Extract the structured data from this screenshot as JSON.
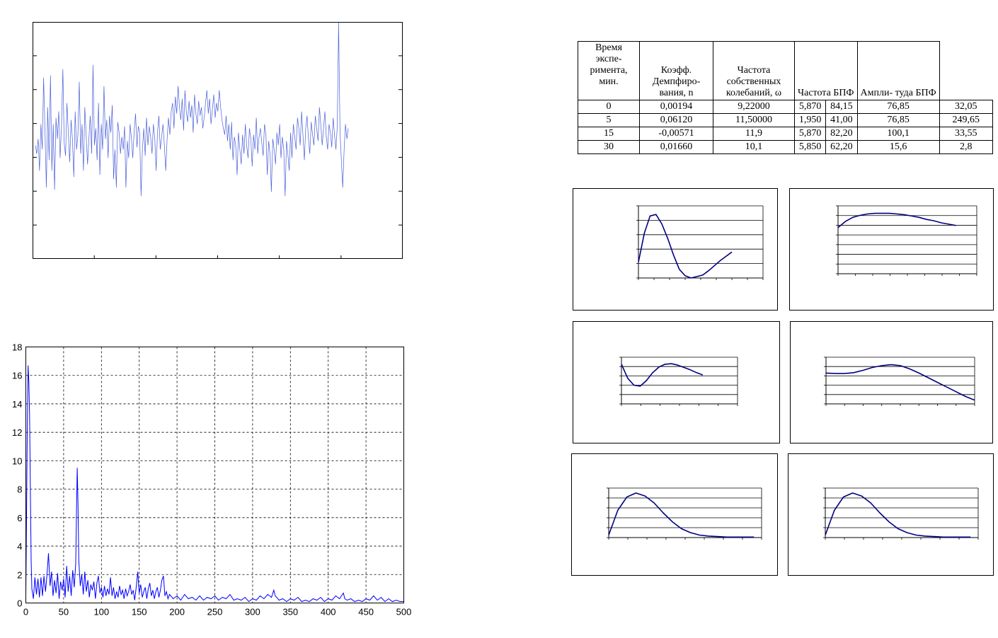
{
  "table": {
    "headers": [
      "Время экспе- римента, мин.",
      "Коэфф. Демпфиро- вания, n",
      "Частота собственных колебаний, ω",
      "Частота БПФ",
      "Ампли- туда БПФ"
    ],
    "rows": [
      [
        "0",
        "0,00194",
        "9,22000",
        "5,870",
        "84,15",
        "76,85",
        "32,05"
      ],
      [
        "5",
        "0,06120",
        "11,50000",
        "1,950",
        "41,00",
        "76,85",
        "249,65"
      ],
      [
        "15",
        "-0,00571",
        "11,9",
        "5,870",
        "82,20",
        "100,1",
        "33,55"
      ],
      [
        "30",
        "0,01660",
        "10,1",
        "5,850",
        "62,20",
        "15,6",
        "2,8"
      ]
    ]
  },
  "colors": {
    "signal": "#4a5fd8",
    "spectrum": "#0000ff",
    "curve": "#000080",
    "grid": "#000000"
  },
  "chart_data": [
    {
      "type": "line",
      "id": "signal",
      "title": "",
      "xlabel": "",
      "ylabel": "",
      "x_ticks_count": 6,
      "y_ticks_count": 6,
      "grid": false,
      "series": [
        {
          "values": [
            0.42,
            0.38,
            0.45,
            0.3,
            0.52,
            0.4,
            0.74,
            0.48,
            0.22,
            0.6,
            0.35,
            0.75,
            0.3,
            0.52,
            0.21,
            0.55,
            0.45,
            0.58,
            0.36,
            0.5,
            0.78,
            0.43,
            0.37,
            0.62,
            0.48,
            0.34,
            0.54,
            0.45,
            0.27,
            0.58,
            0.4,
            0.47,
            0.72,
            0.38,
            0.52,
            0.3,
            0.6,
            0.47,
            0.33,
            0.45,
            0.56,
            0.38,
            0.8,
            0.42,
            0.5,
            0.35,
            0.62,
            0.28,
            0.52,
            0.4,
            0.7,
            0.45,
            0.54,
            0.36,
            0.56,
            0.48,
            0.61,
            0.26,
            0.4,
            0.22,
            0.53,
            0.48,
            0.38,
            0.46,
            0.4,
            0.51,
            0.22,
            0.44,
            0.36,
            0.52,
            0.45,
            0.36,
            0.49,
            0.57,
            0.41,
            0.51,
            0.48,
            0.18,
            0.4,
            0.5,
            0.37,
            0.55,
            0.42,
            0.51,
            0.46,
            0.38,
            0.52,
            0.45,
            0.3,
            0.48,
            0.56,
            0.4,
            0.46,
            0.52,
            0.42,
            0.3,
            0.45,
            0.55,
            0.47,
            0.58,
            0.62,
            0.5,
            0.65,
            0.57,
            0.7,
            0.6,
            0.54,
            0.64,
            0.49,
            0.68,
            0.58,
            0.53,
            0.63,
            0.55,
            0.61,
            0.48,
            0.66,
            0.57,
            0.52,
            0.63,
            0.56,
            0.6,
            0.5,
            0.55,
            0.62,
            0.68,
            0.57,
            0.64,
            0.52,
            0.59,
            0.66,
            0.55,
            0.62,
            0.58,
            0.68,
            0.6,
            0.54,
            0.5,
            0.47,
            0.56,
            0.44,
            0.52,
            0.4,
            0.53,
            0.35,
            0.46,
            0.42,
            0.28,
            0.48,
            0.4,
            0.33,
            0.47,
            0.38,
            0.52,
            0.42,
            0.36,
            0.5,
            0.45,
            0.32,
            0.47,
            0.4,
            0.55,
            0.38,
            0.46,
            0.5,
            0.43,
            0.37,
            0.52,
            0.47,
            0.28,
            0.44,
            0.38,
            0.2,
            0.45,
            0.4,
            0.33,
            0.48,
            0.42,
            0.52,
            0.36,
            0.46,
            0.4,
            0.18,
            0.44,
            0.38,
            0.3,
            0.48,
            0.36,
            0.52,
            0.46,
            0.4,
            0.55,
            0.5,
            0.42,
            0.58,
            0.47,
            0.35,
            0.5,
            0.56,
            0.45,
            0.38,
            0.53,
            0.47,
            0.42,
            0.56,
            0.5,
            0.44,
            0.6,
            0.52,
            0.42,
            0.5,
            0.58,
            0.46,
            0.4,
            0.52,
            0.48,
            0.41,
            0.55,
            0.47,
            0.4,
            0.51,
            1.0,
            0.48,
            0.35,
            0.22,
            0.4,
            0.52,
            0.45,
            0.5
          ]
        }
      ]
    },
    {
      "type": "line",
      "id": "spectrum",
      "title": "",
      "xlabel": "",
      "ylabel": "",
      "x_ticks": [
        0,
        50,
        100,
        150,
        200,
        250,
        300,
        350,
        400,
        450,
        500
      ],
      "y_ticks": [
        0,
        2,
        4,
        6,
        8,
        10,
        12,
        14,
        16,
        18
      ],
      "xlim": [
        0,
        500
      ],
      "ylim": [
        0,
        18
      ],
      "grid": true,
      "series": [
        {
          "points": [
            [
              0,
              0.5
            ],
            [
              1,
              6.8
            ],
            [
              2,
              12.5
            ],
            [
              3,
              16.7
            ],
            [
              4,
              15.5
            ],
            [
              5,
              13.2
            ],
            [
              6,
              8.0
            ],
            [
              7,
              3.0
            ],
            [
              8,
              1.0
            ],
            [
              10,
              0.3
            ],
            [
              12,
              1.8
            ],
            [
              14,
              0.6
            ],
            [
              16,
              1.7
            ],
            [
              18,
              0.4
            ],
            [
              20,
              1.8
            ],
            [
              22,
              0.5
            ],
            [
              24,
              1.9
            ],
            [
              26,
              0.8
            ],
            [
              28,
              2.0
            ],
            [
              30,
              3.5
            ],
            [
              32,
              1.2
            ],
            [
              34,
              2.2
            ],
            [
              36,
              0.5
            ],
            [
              38,
              1.6
            ],
            [
              40,
              0.7
            ],
            [
              42,
              2.1
            ],
            [
              44,
              0.3
            ],
            [
              46,
              1.5
            ],
            [
              48,
              0.9
            ],
            [
              50,
              1.7
            ],
            [
              52,
              0.4
            ],
            [
              54,
              2.6
            ],
            [
              56,
              0.8
            ],
            [
              58,
              1.9
            ],
            [
              60,
              0.5
            ],
            [
              62,
              2.3
            ],
            [
              64,
              1.1
            ],
            [
              66,
              2.8
            ],
            [
              67,
              6.5
            ],
            [
              68,
              9.5
            ],
            [
              69,
              7.0
            ],
            [
              70,
              3.0
            ],
            [
              72,
              1.2
            ],
            [
              74,
              2.0
            ],
            [
              76,
              0.6
            ],
            [
              78,
              2.2
            ],
            [
              80,
              0.8
            ],
            [
              82,
              1.6
            ],
            [
              84,
              0.4
            ],
            [
              86,
              1.3
            ],
            [
              88,
              0.9
            ],
            [
              90,
              1.5
            ],
            [
              92,
              0.3
            ],
            [
              94,
              1.4
            ],
            [
              96,
              1.9
            ],
            [
              98,
              0.7
            ],
            [
              100,
              1.1
            ],
            [
              102,
              0.4
            ],
            [
              104,
              1.2
            ],
            [
              106,
              0.5
            ],
            [
              108,
              1.0
            ],
            [
              110,
              0.6
            ],
            [
              112,
              1.8
            ],
            [
              114,
              0.5
            ],
            [
              116,
              1.1
            ],
            [
              118,
              0.3
            ],
            [
              120,
              0.8
            ],
            [
              122,
              0.4
            ],
            [
              124,
              1.2
            ],
            [
              126,
              0.6
            ],
            [
              128,
              0.9
            ],
            [
              130,
              0.3
            ],
            [
              132,
              1.0
            ],
            [
              134,
              0.5
            ],
            [
              136,
              0.8
            ],
            [
              138,
              1.3
            ],
            [
              140,
              0.6
            ],
            [
              142,
              0.9
            ],
            [
              144,
              0.2
            ],
            [
              146,
              1.1
            ],
            [
              148,
              2.2
            ],
            [
              150,
              0.7
            ],
            [
              152,
              1.3
            ],
            [
              154,
              0.4
            ],
            [
              156,
              0.8
            ],
            [
              158,
              1.1
            ],
            [
              160,
              0.3
            ],
            [
              162,
              1.0
            ],
            [
              164,
              1.4
            ],
            [
              166,
              0.5
            ],
            [
              168,
              0.9
            ],
            [
              170,
              0.3
            ],
            [
              172,
              0.8
            ],
            [
              174,
              1.1
            ],
            [
              176,
              0.4
            ],
            [
              178,
              0.9
            ],
            [
              180,
              1.6
            ],
            [
              182,
              1.9
            ],
            [
              184,
              0.5
            ],
            [
              186,
              0.8
            ],
            [
              188,
              0.3
            ],
            [
              190,
              0.6
            ],
            [
              195,
              0.3
            ],
            [
              200,
              0.5
            ],
            [
              205,
              0.2
            ],
            [
              210,
              0.6
            ],
            [
              215,
              0.3
            ],
            [
              220,
              0.4
            ],
            [
              225,
              0.2
            ],
            [
              230,
              0.5
            ],
            [
              235,
              0.2
            ],
            [
              240,
              0.4
            ],
            [
              245,
              0.3
            ],
            [
              250,
              0.5
            ],
            [
              255,
              0.2
            ],
            [
              260,
              0.4
            ],
            [
              265,
              0.3
            ],
            [
              270,
              0.6
            ],
            [
              275,
              0.2
            ],
            [
              280,
              0.3
            ],
            [
              285,
              0.2
            ],
            [
              290,
              0.4
            ],
            [
              295,
              0.1
            ],
            [
              300,
              0.3
            ],
            [
              305,
              0.2
            ],
            [
              310,
              0.5
            ],
            [
              315,
              0.3
            ],
            [
              320,
              0.6
            ],
            [
              325,
              0.4
            ],
            [
              328,
              0.9
            ],
            [
              330,
              0.5
            ],
            [
              335,
              0.2
            ],
            [
              340,
              0.3
            ],
            [
              345,
              0.1
            ],
            [
              350,
              0.3
            ],
            [
              355,
              0.2
            ],
            [
              360,
              0.4
            ],
            [
              365,
              0.1
            ],
            [
              370,
              0.2
            ],
            [
              375,
              0.1
            ],
            [
              380,
              0.3
            ],
            [
              385,
              0.2
            ],
            [
              390,
              0.4
            ],
            [
              395,
              0.1
            ],
            [
              400,
              0.3
            ],
            [
              405,
              0.2
            ],
            [
              410,
              0.5
            ],
            [
              415,
              0.3
            ],
            [
              420,
              0.7
            ],
            [
              422,
              0.3
            ],
            [
              425,
              0.2
            ],
            [
              430,
              0.3
            ],
            [
              435,
              0.1
            ],
            [
              440,
              0.2
            ],
            [
              445,
              0.1
            ],
            [
              450,
              0.3
            ],
            [
              455,
              0.2
            ],
            [
              460,
              0.5
            ],
            [
              465,
              0.2
            ],
            [
              470,
              0.4
            ],
            [
              475,
              0.1
            ],
            [
              480,
              0.3
            ],
            [
              485,
              0.1
            ],
            [
              490,
              0.2
            ],
            [
              495,
              0.1
            ],
            [
              500,
              0.1
            ]
          ]
        }
      ]
    },
    {
      "type": "line",
      "id": "mini1",
      "title": "",
      "grid": true,
      "hlines": 5,
      "x_ticks_count": 8,
      "series": [
        {
          "values": [
            0.22,
            0.62,
            0.86,
            0.88,
            0.75,
            0.55,
            0.32,
            0.12,
            0.03,
            0.0,
            0.02,
            0.04,
            0.1,
            0.17,
            0.24,
            0.3,
            0.36
          ]
        }
      ]
    },
    {
      "type": "line",
      "id": "mini2",
      "title": "",
      "grid": true,
      "hlines": 7,
      "x_ticks_count": 8,
      "series": [
        {
          "values": [
            0.68,
            0.77,
            0.83,
            0.86,
            0.88,
            0.89,
            0.89,
            0.89,
            0.88,
            0.87,
            0.85,
            0.83,
            0.8,
            0.78,
            0.75,
            0.73,
            0.71
          ]
        }
      ]
    },
    {
      "type": "line",
      "id": "mini3",
      "title": "",
      "grid": true,
      "hlines": 5,
      "x_ticks_count": 6,
      "series": [
        {
          "values": [
            0.85,
            0.55,
            0.4,
            0.38,
            0.5,
            0.67,
            0.79,
            0.85,
            0.86,
            0.83,
            0.78,
            0.73,
            0.67,
            0.62
          ]
        }
      ]
    },
    {
      "type": "line",
      "id": "mini4",
      "title": "",
      "grid": true,
      "hlines": 5,
      "x_ticks_count": 8,
      "series": [
        {
          "values": [
            0.66,
            0.65,
            0.65,
            0.67,
            0.72,
            0.78,
            0.82,
            0.84,
            0.82,
            0.75,
            0.66,
            0.56,
            0.46,
            0.36,
            0.26,
            0.16,
            0.08
          ]
        }
      ]
    },
    {
      "type": "line",
      "id": "mini5",
      "title": "",
      "grid": true,
      "hlines": 5,
      "x_ticks_count": 8,
      "series": [
        {
          "values": [
            0.05,
            0.55,
            0.82,
            0.9,
            0.84,
            0.7,
            0.5,
            0.32,
            0.18,
            0.1,
            0.05,
            0.03,
            0.02,
            0.01,
            0.01,
            0.01,
            0.01
          ]
        }
      ]
    },
    {
      "type": "line",
      "id": "mini6",
      "title": "",
      "grid": true,
      "hlines": 5,
      "x_ticks_count": 8,
      "series": [
        {
          "values": [
            0.05,
            0.55,
            0.82,
            0.9,
            0.84,
            0.7,
            0.5,
            0.32,
            0.18,
            0.1,
            0.05,
            0.03,
            0.02,
            0.01,
            0.01,
            0.01,
            0.01
          ]
        }
      ]
    }
  ]
}
